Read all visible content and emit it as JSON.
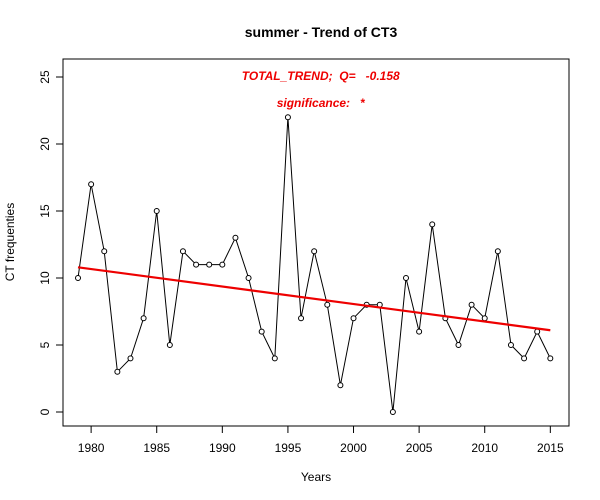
{
  "chart_data": {
    "type": "line",
    "title": "summer  -  Trend of CT3",
    "xlabel": "Years",
    "ylabel": "CT frequenties",
    "xlim": [
      1978,
      2016
    ],
    "ylim": [
      0,
      26
    ],
    "xticks": [
      1980,
      1985,
      1990,
      1995,
      2000,
      2005,
      2010,
      2015
    ],
    "yticks": [
      0,
      5,
      10,
      15,
      20,
      25
    ],
    "grid": false,
    "series": [
      {
        "x": [
          1979,
          1980,
          1981,
          1982,
          1983,
          1984,
          1985,
          1986,
          1987,
          1988,
          1989,
          1990,
          1991,
          1992,
          1993,
          1994,
          1995,
          1996,
          1997,
          1998,
          1999,
          2000,
          2001,
          2002,
          2003,
          2004,
          2005,
          2006,
          2007,
          2008,
          2009,
          2010,
          2011,
          2012,
          2013,
          2014,
          2015
        ],
        "values": [
          10,
          17,
          12,
          3,
          4,
          7,
          15,
          5,
          12,
          11,
          11,
          11,
          13,
          10,
          6,
          4,
          22,
          7,
          12,
          8,
          2,
          7,
          8,
          8,
          0,
          10,
          6,
          14,
          7,
          5,
          8,
          7,
          12,
          5,
          4,
          6,
          4
        ],
        "color": "#000000"
      }
    ],
    "trend": {
      "x": [
        1979,
        2015
      ],
      "y": [
        10.8,
        6.1
      ],
      "color": "#ee0000"
    },
    "annotations": [
      {
        "text": "TOTAL_TREND;  Q=   -0.158",
        "x": 1997.5,
        "y": 25,
        "color": "#ee0000"
      },
      {
        "text": "significance:   *",
        "x": 1997.5,
        "y": 23,
        "color": "#ee0000"
      }
    ]
  }
}
